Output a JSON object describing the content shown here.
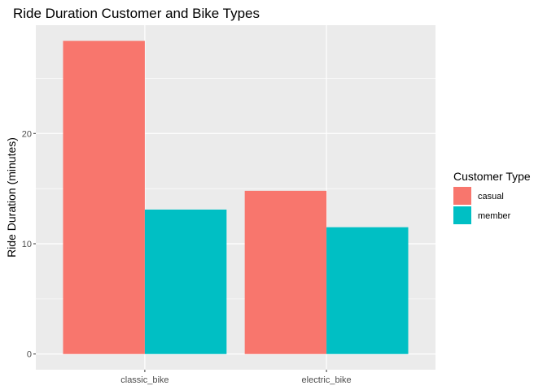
{
  "chart_data": {
    "type": "bar",
    "title": "Ride Duration Customer and Bike Types",
    "xlabel": "",
    "ylabel": "Ride Duration (minutes)",
    "categories": [
      "classic_bike",
      "electric_bike"
    ],
    "series": [
      {
        "name": "casual",
        "values": [
          28.4,
          14.8
        ],
        "color": "#F8766D"
      },
      {
        "name": "member",
        "values": [
          13.1,
          11.5
        ],
        "color": "#00BFC4"
      }
    ],
    "yticks": [
      0,
      10,
      20
    ],
    "ylim": [
      -1.42,
      29.82
    ],
    "grid": true,
    "legend": {
      "title": "Customer Type",
      "position": "right"
    },
    "panel_background": "#EBEBEB",
    "grid_color": "#FFFFFF"
  }
}
